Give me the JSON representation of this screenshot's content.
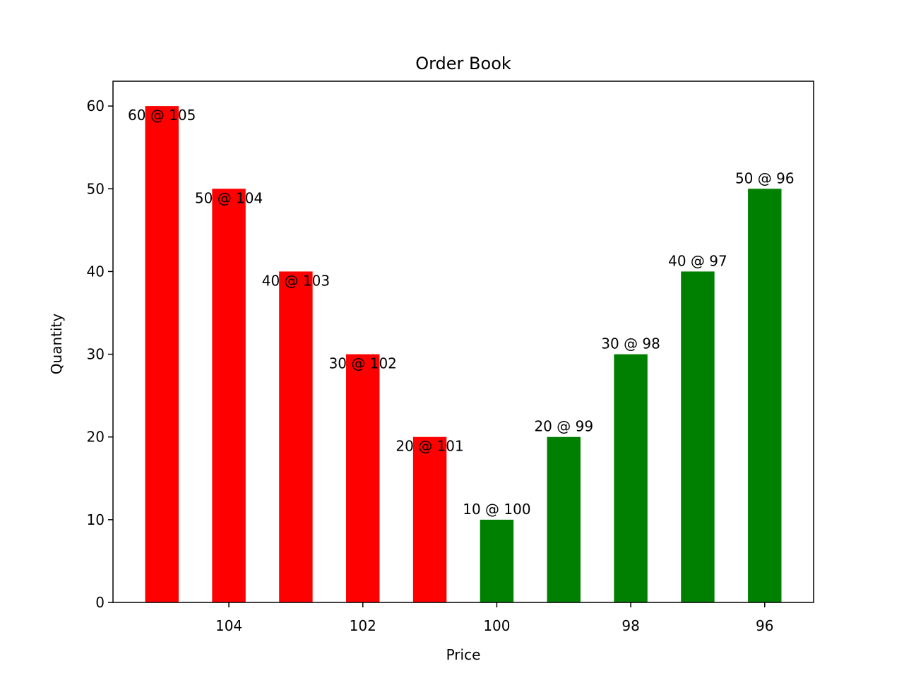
{
  "chart_data": {
    "type": "bar",
    "title": "Order Book",
    "xlabel": "Price",
    "ylabel": "Quantity",
    "x": [
      105,
      104,
      103,
      102,
      101,
      100,
      99,
      98,
      97,
      96
    ],
    "values": [
      60,
      50,
      40,
      30,
      20,
      10,
      20,
      30,
      40,
      50
    ],
    "value_labels": [
      "60 @ 105",
      "50 @ 104",
      "40 @ 103",
      "30 @ 102",
      "20 @ 101",
      "10 @ 100",
      "20 @ 99",
      "30 @ 98",
      "40 @ 97",
      "50 @ 96"
    ],
    "colors": [
      "#ff0000",
      "#ff0000",
      "#ff0000",
      "#ff0000",
      "#ff0000",
      "#008000",
      "#008000",
      "#008000",
      "#008000",
      "#008000"
    ],
    "bar_width": 0.5,
    "xlim": [
      105.73,
      95.27
    ],
    "xticks": [
      104,
      102,
      100,
      98,
      96
    ],
    "ylim": [
      0,
      63
    ],
    "yticks": [
      0,
      10,
      20,
      30,
      40,
      50,
      60
    ],
    "grid": false
  }
}
